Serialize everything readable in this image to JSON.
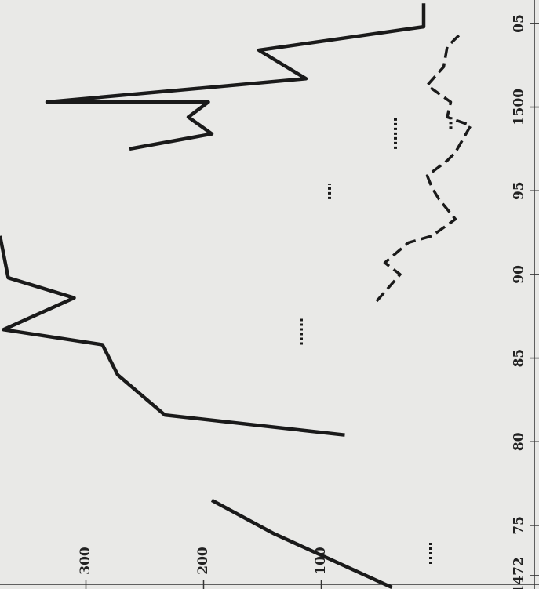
{
  "chart_data": {
    "type": "line",
    "orientation": "vertical-time",
    "xlim": [
      1471.2,
      1506.4
    ],
    "xticks": [
      1472,
      {
        "value": 1475,
        "label": "75"
      },
      {
        "value": 1480,
        "label": "80"
      },
      {
        "value": 1485,
        "label": "85"
      },
      {
        "value": 1490,
        "label": "90"
      },
      {
        "value": 1495,
        "label": "95"
      },
      1500,
      {
        "value": 1505,
        "label": "05"
      }
    ],
    "ylim": [
      -85,
      373
    ],
    "yticks": [
      100,
      200,
      300
    ],
    "series": [
      {
        "style": "solid",
        "color": "#1a1a1a",
        "x": [
          1471.3,
          1474.5,
          1476.5,
          null,
          1480.4,
          1481.6,
          1484.0,
          1485.8,
          1486.7,
          1488.6,
          1489.8,
          1492.3,
          null,
          1497.5,
          1498.4,
          1499.4,
          1500.3,
          1500.3,
          1501.7,
          1503.4,
          1504.8,
          1506.2
        ],
        "values": [
          40,
          140,
          193,
          null,
          80,
          233,
          273,
          286,
          370,
          310,
          366,
          373,
          null,
          263,
          193,
          213,
          196,
          333,
          113,
          153,
          13,
          13
        ]
      },
      {
        "style": "dashed",
        "color": "#1a1a1a",
        "x": [
          1488.4,
          1490.0,
          1490.7,
          1491.9,
          1492.3,
          1493.3,
          1494.5,
          1495.2,
          1495.9,
          1496.8,
          1497.3,
          1498.9,
          1499.4,
          1500.3,
          1501.3,
          1502.4,
          1503.6,
          1504.5
        ],
        "values": [
          53,
          33,
          46,
          26,
          6,
          -14,
          0,
          6,
          10,
          -7,
          -14,
          -27,
          -7,
          -10,
          10,
          -4,
          -7,
          -20
        ]
      },
      {
        "style": "dotted",
        "color": "#1a1a1a",
        "x": [
          1472.7,
          1474.1,
          null,
          1485.8,
          1487.4,
          null,
          1494.5,
          1495.4,
          null,
          1497.5,
          1499.4,
          null,
          1498.7,
          1499.5
        ],
        "values": [
          7,
          7,
          null,
          117,
          117,
          null,
          93,
          93,
          null,
          37,
          37,
          null,
          -10,
          -10
        ]
      }
    ]
  }
}
